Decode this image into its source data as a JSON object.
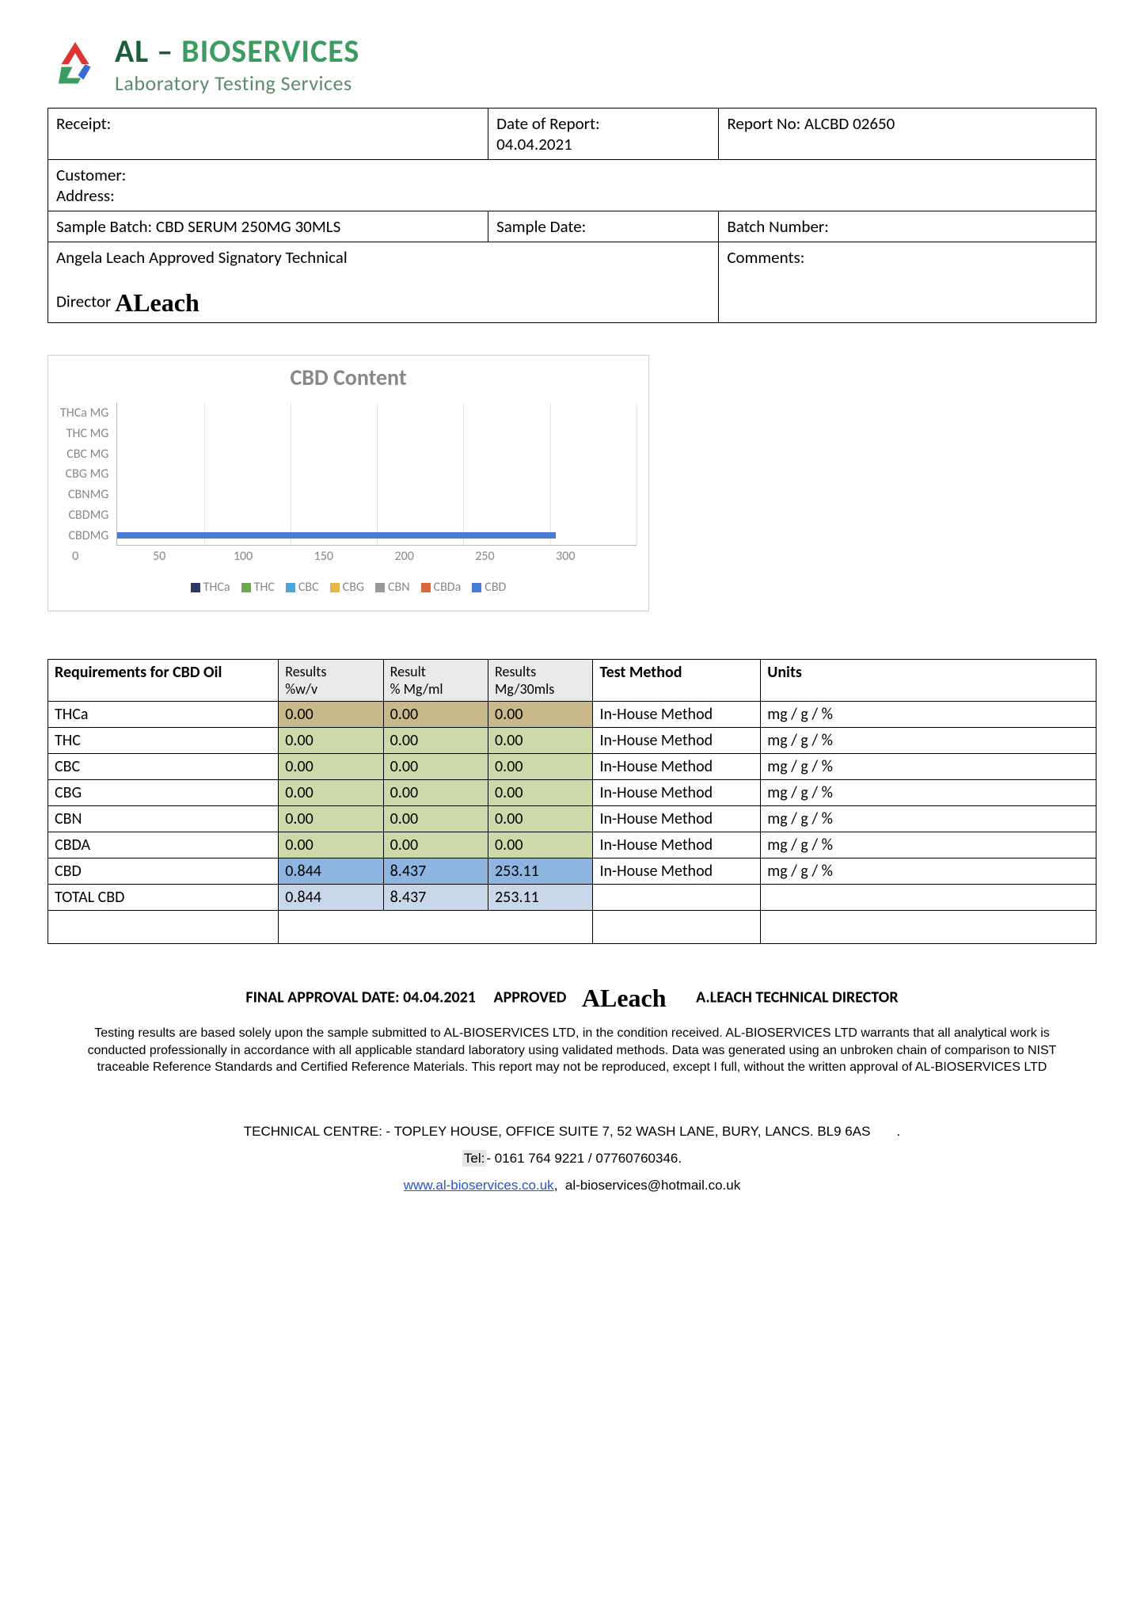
{
  "logo": {
    "main_al": "AL",
    "main_sep": " – ",
    "main_bio": "BIOSERVICES",
    "sub": "Laboratory Testing Services"
  },
  "header": {
    "receipt_label": "Receipt:",
    "date_label": "Date of Report:",
    "date_value": "04.04.2021",
    "report_label": "Report No:",
    "report_value": "ALCBD 02650",
    "customer_label": "Customer:",
    "address_label": "Address:",
    "sample_batch_label": "Sample Batch:",
    "sample_batch_value": "CBD SERUM   250MG 30MLS",
    "sample_date_label": "Sample Date:",
    "batch_number_label": "Batch Number:",
    "signatory_line1": "Angela Leach Approved Signatory Technical",
    "signatory_line2": "Director",
    "signature_text": "ALeach",
    "comments_label": "Comments:"
  },
  "chart": {
    "title": "CBD Content",
    "y_labels": [
      "THCa MG",
      "THC MG",
      "CBC MG",
      "CBG MG",
      "CBNMG",
      "CBDMG",
      "CBDMG"
    ],
    "x_ticks": [
      0,
      50,
      100,
      150,
      200,
      250,
      300
    ],
    "x_max": 300,
    "legend": [
      {
        "label": "THCa",
        "color": "#2e3a66"
      },
      {
        "label": "THC",
        "color": "#6fa84f"
      },
      {
        "label": "CBC",
        "color": "#4aa6d4"
      },
      {
        "label": "CBG",
        "color": "#e6b84a"
      },
      {
        "label": "CBN",
        "color": "#999999"
      },
      {
        "label": "CBDa",
        "color": "#d66a3a"
      },
      {
        "label": "CBD",
        "color": "#4a7bd4"
      }
    ],
    "bars": [
      {
        "row_index": 6,
        "value": 253.11,
        "color": "#4a7bd4"
      }
    ],
    "grid_color": "#e5e5e5"
  },
  "results": {
    "header_main": "Requirements for CBD Oil",
    "sub_headers": [
      "Results\n%w/v",
      "Result\n% Mg/ml",
      "Results\nMg/30mls"
    ],
    "test_method_header": "Test Method",
    "units_header": "Units",
    "row_colors": {
      "thca": "#c9b98a",
      "green": "#cdd9a8",
      "cbd": "#8eb5e0",
      "total": "#c9d7ea"
    },
    "rows": [
      {
        "name": "THCa",
        "v1": "0.00",
        "v2": "0.00",
        "v3": "0.00",
        "method": "In-House Method",
        "units": "mg / g / %",
        "bg": "thca"
      },
      {
        "name": "THC",
        "v1": "0.00",
        "v2": "0.00",
        "v3": "0.00",
        "method": "In-House Method",
        "units": "mg / g / %",
        "bg": "green"
      },
      {
        "name": "CBC",
        "v1": "0.00",
        "v2": "0.00",
        "v3": "0.00",
        "method": "In-House Method",
        "units": "mg / g / %",
        "bg": "green"
      },
      {
        "name": "CBG",
        "v1": "0.00",
        "v2": "0.00",
        "v3": "0.00",
        "method": "In-House Method",
        "units": "mg / g / %",
        "bg": "green"
      },
      {
        "name": "CBN",
        "v1": "0.00",
        "v2": "0.00",
        "v3": "0.00",
        "method": "In-House Method",
        "units": "mg / g / %",
        "bg": "green"
      },
      {
        "name": "CBDA",
        "v1": "0.00",
        "v2": "0.00",
        "v3": "0.00",
        "method": "In-House Method",
        "units": "mg / g / %",
        "bg": "green"
      },
      {
        "name": "CBD",
        "v1": "0.844",
        "v2": "8.437",
        "v3": "253.11",
        "method": "In-House Method",
        "units": "mg / g / %",
        "bg": "cbd"
      },
      {
        "name": "TOTAL CBD",
        "v1": "0.844",
        "v2": "8.437",
        "v3": "253.11",
        "method": "",
        "units": "",
        "bg": "total"
      }
    ]
  },
  "approval": {
    "date_label": "FINAL APPROVAL DATE:",
    "date_value": "04.04.2021",
    "approved_label": "APPROVED",
    "signature_text": "ALeach",
    "director": "A.LEACH TECHNICAL DIRECTOR"
  },
  "disclaimer": "Testing results are based solely upon the sample submitted to AL-BIOSERVICES LTD, in the condition received. AL-BIOSERVICES LTD warrants that all analytical work is conducted professionally in accordance with all applicable standard laboratory using validated methods. Data was generated using an unbroken chain of comparison to NIST traceable Reference Standards and Certified Reference Materials. This report may not be reproduced, except I full, without the written approval of AL-BIOSERVICES LTD",
  "footer": {
    "address": "TECHNICAL CENTRE: - TOPLEY HOUSE, OFFICE SUITE 7, 52 WASH LANE, BURY, LANCS. BL9 6AS",
    "tel_label": "Tel:",
    "tel_value": "- 0161 764 9221 / 07760760346.",
    "web": "www.al-bioservices.co.uk",
    "email": "al-bioservices@hotmail.co.uk"
  }
}
